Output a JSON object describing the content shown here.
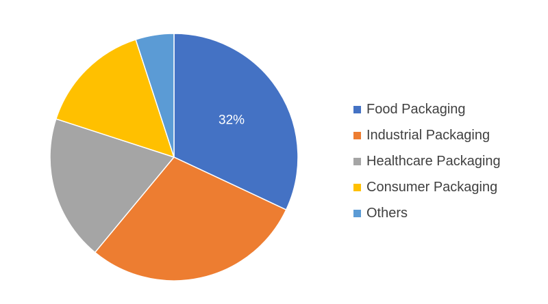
{
  "chart_data": {
    "type": "pie",
    "title": "",
    "start_angle_deg": 0,
    "direction": "clockwise",
    "categories": [
      "Food Packaging",
      "Industrial Packaging",
      "Healthcare Packaging",
      "Consumer Packaging",
      "Others"
    ],
    "values": [
      32,
      29,
      19,
      15,
      5
    ],
    "colors": [
      "#4472c4",
      "#ed7d31",
      "#a5a5a5",
      "#ffc000",
      "#5b9bd5"
    ],
    "data_labels": [
      {
        "category": "Food Packaging",
        "text": "32%"
      }
    ],
    "legend": {
      "position": "right",
      "entries": [
        "Food Packaging",
        "Industrial Packaging",
        "Healthcare Packaging",
        "Consumer Packaging",
        "Others"
      ]
    }
  }
}
